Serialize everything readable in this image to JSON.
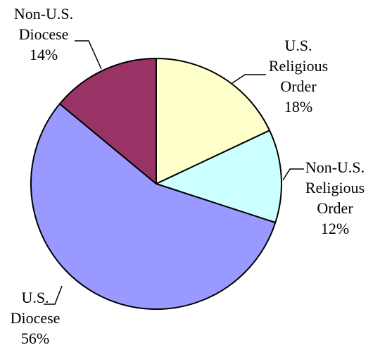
{
  "chart_data": {
    "type": "pie",
    "title": "",
    "slices": [
      {
        "label_lines": [
          "U.S.",
          "Religious",
          "Order"
        ],
        "value": 18,
        "value_label": "18%",
        "color": "#FFFFCC"
      },
      {
        "label_lines": [
          "Non-U.S.",
          "Religious",
          "Order"
        ],
        "value": 12,
        "value_label": "12%",
        "color": "#CCFFFF"
      },
      {
        "label_lines": [
          "U.S.",
          "Diocese"
        ],
        "value": 56,
        "value_label": "56%",
        "color": "#9999FF"
      },
      {
        "label_lines": [
          "Non-U.S.",
          "Diocese"
        ],
        "value": 14,
        "value_label": "14%",
        "color": "#993366"
      }
    ],
    "start_angle": "12 o'clock",
    "direction": "clockwise",
    "legend": "none",
    "data_labels": "outside with leader lines",
    "edge_color": "#000000"
  }
}
